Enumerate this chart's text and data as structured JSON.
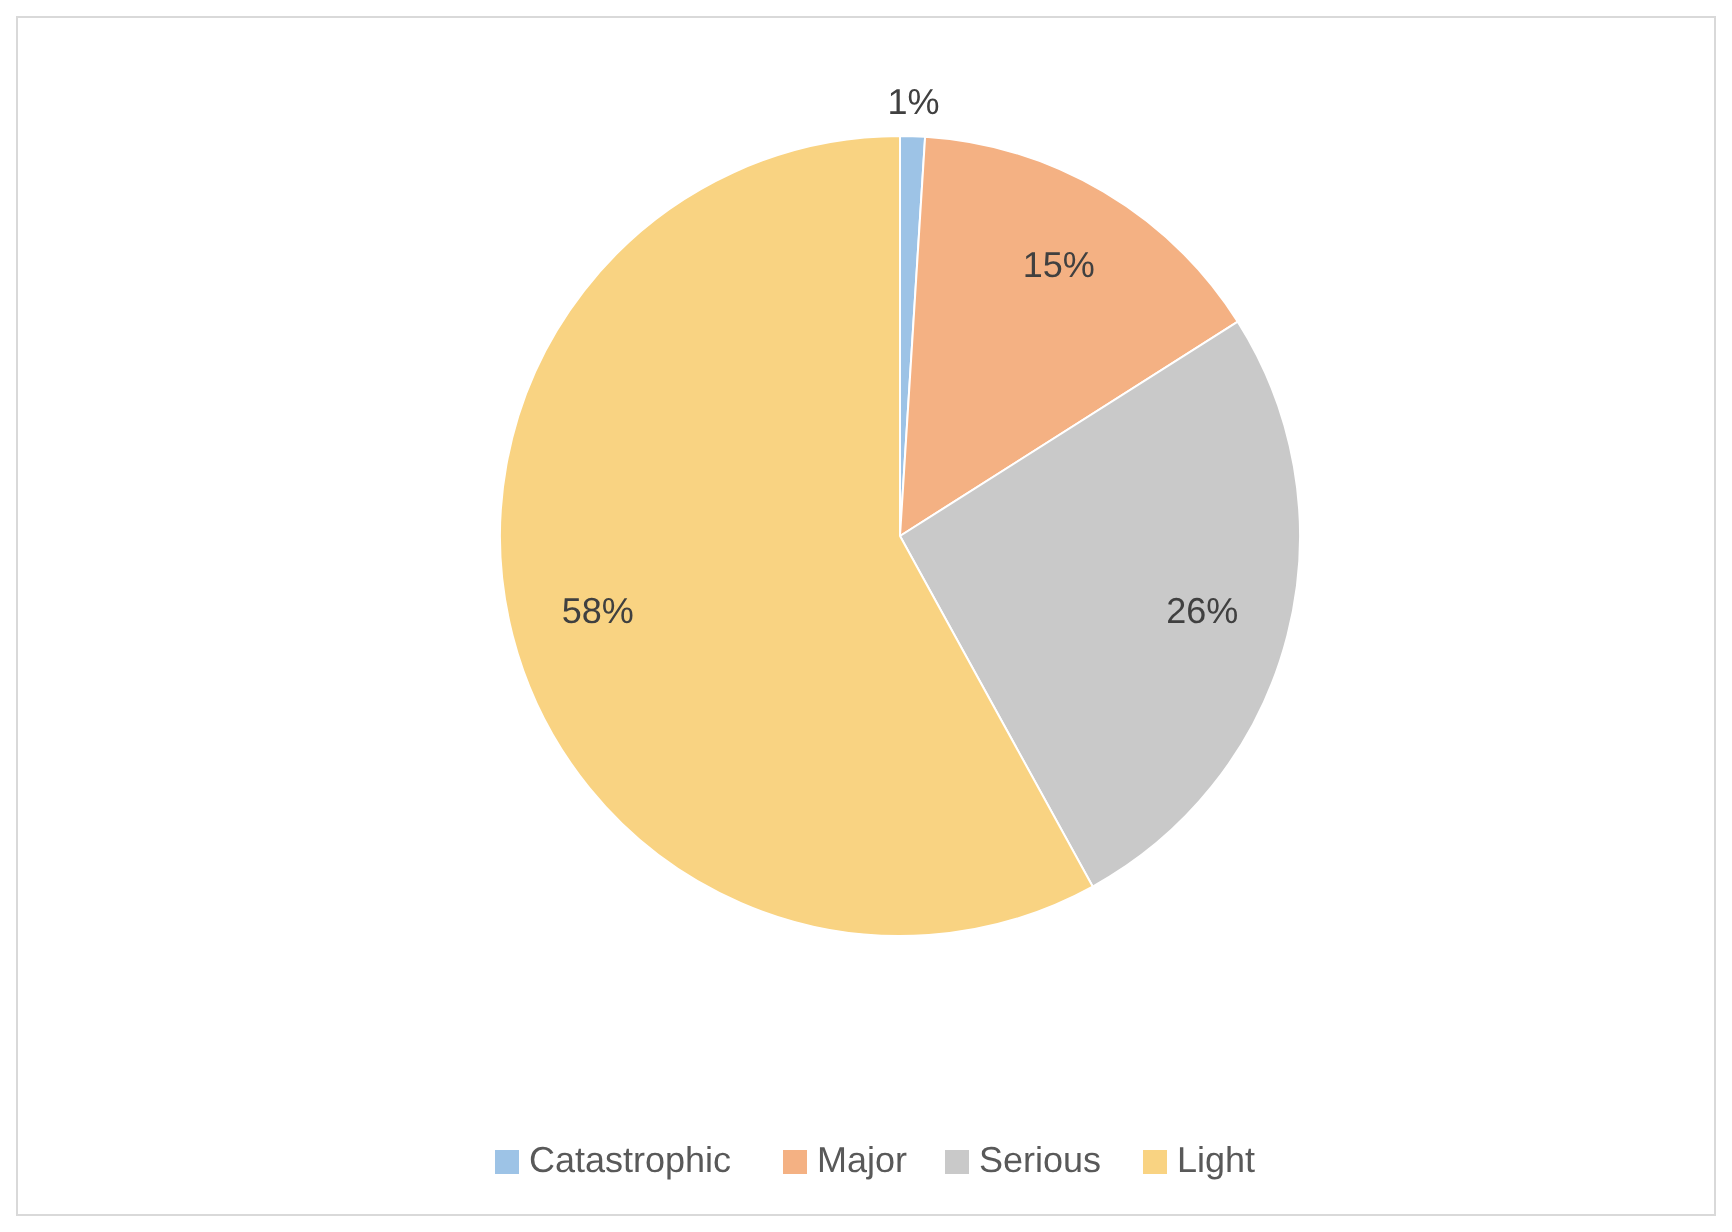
{
  "chart_data": {
    "type": "pie",
    "categories": [
      "Catastrophic",
      "Major",
      "Serious",
      "Light"
    ],
    "values": [
      1,
      15,
      26,
      58
    ],
    "colors": [
      "#9dc3e6",
      "#f4b183",
      "#c9c9c9",
      "#f9d382"
    ],
    "value_labels": [
      "1%",
      "15%",
      "26%",
      "58%"
    ],
    "legend": "bottom"
  }
}
